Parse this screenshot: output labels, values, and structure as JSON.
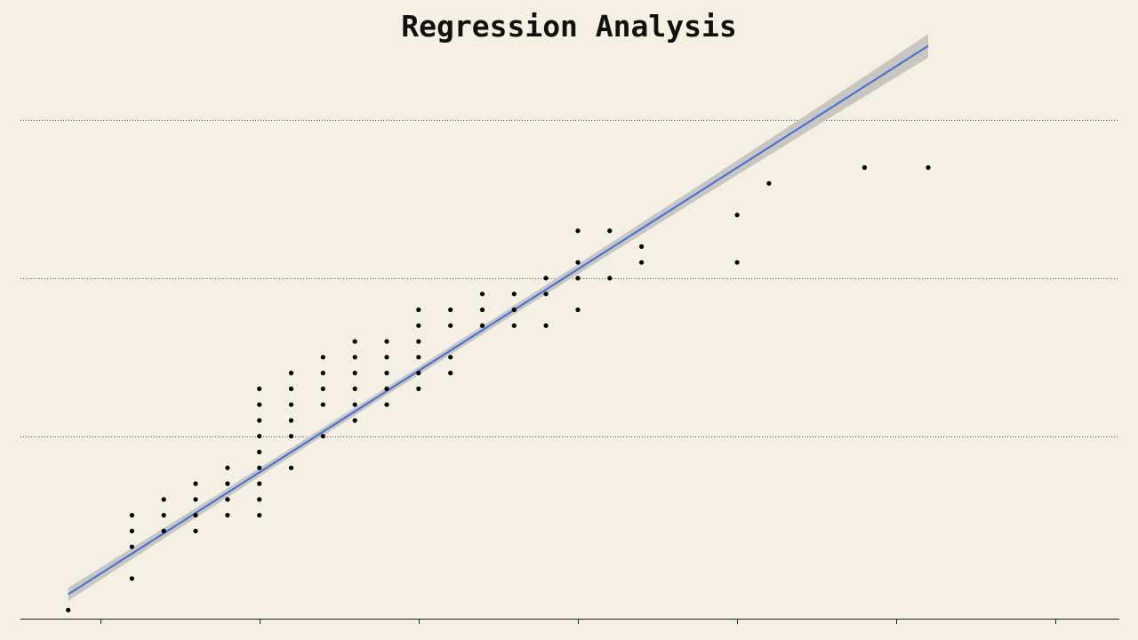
{
  "chart_data": {
    "type": "scatter",
    "title": "Regression Analysis",
    "xlabel": "",
    "ylabel": "",
    "xlim": [
      1.5,
      8.4
    ],
    "ylim": [
      8.4,
      47.6
    ],
    "x_ticks": [
      2,
      3,
      4,
      5,
      6,
      7,
      8
    ],
    "y_gridlines": [
      20,
      30,
      40
    ],
    "grid": "horizontal dotted",
    "legend": "none",
    "tick_labels_visible": false,
    "colors": {
      "background": "#f5f0e4",
      "points": "#000000",
      "fit_line": "#3b6fe0",
      "confidence_band": "#c9c6c0",
      "gridlines": "#555555",
      "axis": "#222222"
    },
    "series": [
      {
        "kind": "points",
        "points": [
          [
            1.8,
            9
          ],
          [
            2.2,
            11
          ],
          [
            2.2,
            13
          ],
          [
            2.2,
            14
          ],
          [
            2.2,
            15
          ],
          [
            2.4,
            14
          ],
          [
            2.4,
            15
          ],
          [
            2.4,
            16
          ],
          [
            2.6,
            14
          ],
          [
            2.6,
            15
          ],
          [
            2.6,
            16
          ],
          [
            2.6,
            17
          ],
          [
            2.8,
            15
          ],
          [
            2.8,
            16
          ],
          [
            2.8,
            17
          ],
          [
            2.8,
            18
          ],
          [
            3,
            15
          ],
          [
            3,
            16
          ],
          [
            3,
            17
          ],
          [
            3,
            18
          ],
          [
            3,
            19
          ],
          [
            3,
            20
          ],
          [
            3,
            21
          ],
          [
            3,
            22
          ],
          [
            3,
            23
          ],
          [
            3.2,
            18
          ],
          [
            3.2,
            20
          ],
          [
            3.2,
            21
          ],
          [
            3.2,
            22
          ],
          [
            3.2,
            23
          ],
          [
            3.2,
            24
          ],
          [
            3.4,
            20
          ],
          [
            3.4,
            22
          ],
          [
            3.4,
            23
          ],
          [
            3.4,
            24
          ],
          [
            3.4,
            25
          ],
          [
            3.6,
            21
          ],
          [
            3.6,
            22
          ],
          [
            3.6,
            23
          ],
          [
            3.6,
            24
          ],
          [
            3.6,
            25
          ],
          [
            3.6,
            26
          ],
          [
            3.8,
            22
          ],
          [
            3.8,
            23
          ],
          [
            3.8,
            24
          ],
          [
            3.8,
            25
          ],
          [
            3.8,
            26
          ],
          [
            4,
            23
          ],
          [
            4,
            24
          ],
          [
            4,
            25
          ],
          [
            4,
            26
          ],
          [
            4,
            27
          ],
          [
            4,
            28
          ],
          [
            4.2,
            24
          ],
          [
            4.2,
            25
          ],
          [
            4.2,
            27
          ],
          [
            4.2,
            28
          ],
          [
            4.4,
            27
          ],
          [
            4.4,
            28
          ],
          [
            4.4,
            29
          ],
          [
            4.6,
            27
          ],
          [
            4.6,
            28
          ],
          [
            4.6,
            29
          ],
          [
            4.8,
            27
          ],
          [
            4.8,
            29
          ],
          [
            4.8,
            30
          ],
          [
            5,
            28
          ],
          [
            5,
            30
          ],
          [
            5,
            31
          ],
          [
            5,
            33
          ],
          [
            5.2,
            30
          ],
          [
            5.2,
            33
          ],
          [
            5.4,
            31
          ],
          [
            5.4,
            32
          ],
          [
            6,
            31
          ],
          [
            6,
            34
          ],
          [
            6.2,
            36
          ],
          [
            6.8,
            37
          ],
          [
            7.2,
            37
          ]
        ]
      },
      {
        "kind": "fit",
        "name": "",
        "x": [
          1.8,
          7.2
        ],
        "y": [
          10.0,
          44.7
        ],
        "band_halfwidth_at_mean": 0.25,
        "band_halfwidth_at_ends": 0.75
      }
    ]
  }
}
